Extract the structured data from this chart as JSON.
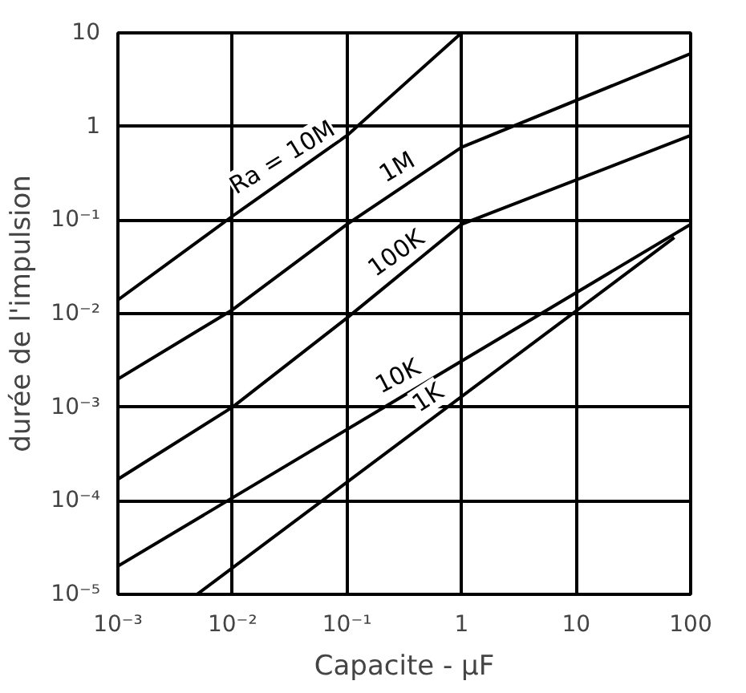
{
  "chart_data": {
    "type": "line",
    "xlabel": "Capacite - µF",
    "ylabel": "durée de l'impulsion",
    "log": "xy",
    "grid": true,
    "marker": "none",
    "line_style": "solid",
    "xlim": [
      0.001,
      100
    ],
    "ylim": [
      1e-05,
      10
    ],
    "xticks": [
      {
        "value": 0.001,
        "label": "10⁻³"
      },
      {
        "value": 0.01,
        "label": "10⁻²"
      },
      {
        "value": 0.1,
        "label": "10⁻¹"
      },
      1,
      10,
      100
    ],
    "yticks": [
      {
        "value": 1e-05,
        "label": "10⁻⁵"
      },
      {
        "value": 0.0001,
        "label": "10⁻⁴"
      },
      {
        "value": 0.001,
        "label": "10⁻³"
      },
      {
        "value": 0.01,
        "label": "10⁻²"
      },
      {
        "value": 0.1,
        "label": "10⁻¹"
      },
      1,
      10
    ],
    "series": [
      {
        "name": "Ra = 10M",
        "color": "#000000",
        "x": [
          0.001,
          0.01,
          0.1,
          1
        ],
        "values": [
          0.014,
          0.11,
          0.8,
          10
        ]
      },
      {
        "name": "1M",
        "color": "#000000",
        "x": [
          0.001,
          0.01,
          0.1,
          1,
          100
        ],
        "values": [
          0.002,
          0.011,
          0.09,
          0.6,
          6
        ]
      },
      {
        "name": "100K",
        "color": "#000000",
        "x": [
          0.001,
          0.01,
          0.1,
          1,
          100
        ],
        "values": [
          0.00017,
          0.001,
          0.009,
          0.09,
          0.8
        ]
      },
      {
        "name": "10K",
        "color": "#000000",
        "x": [
          0.001,
          100
        ],
        "values": [
          2e-05,
          0.09
        ]
      },
      {
        "name": "1K",
        "color": "#000000",
        "x": [
          0.0049,
          72
        ],
        "values": [
          1e-05,
          0.065
        ]
      }
    ]
  }
}
